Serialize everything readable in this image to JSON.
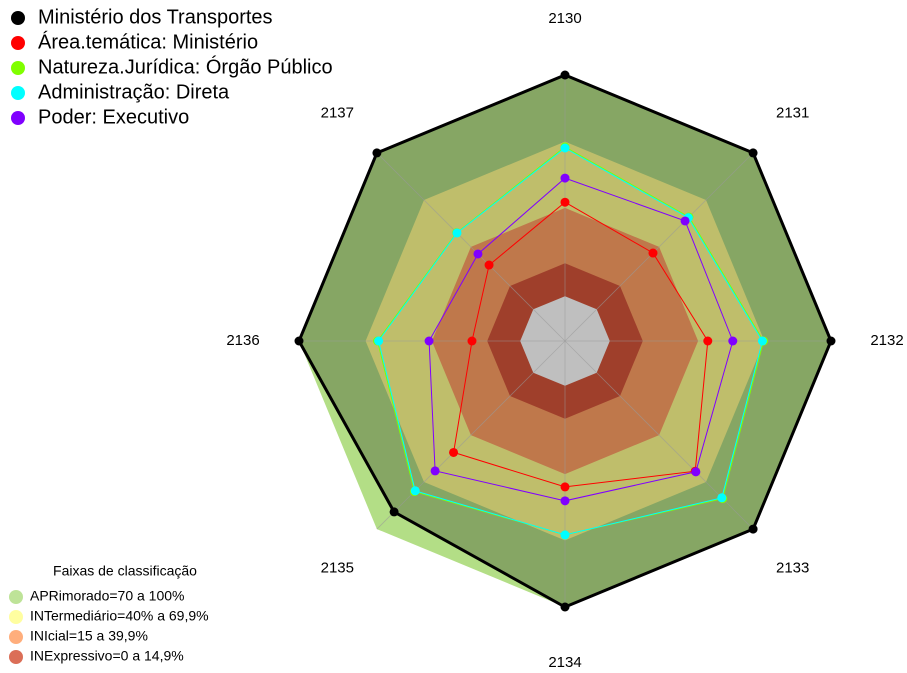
{
  "chart_data": {
    "type": "radar",
    "categories": [
      "2130",
      "2131",
      "2132",
      "2133",
      "2134",
      "2135",
      "2136",
      "2137"
    ],
    "rlim": [
      0,
      100
    ],
    "series": [
      {
        "name": "Ministério dos Transportes",
        "color": "#000000",
        "values": [
          100,
          100,
          100,
          100,
          100,
          89,
          100,
          100
        ]
      },
      {
        "name": "Área.temática: Ministério",
        "color": "#ff0000",
        "values": [
          42.5,
          36,
          44.3,
          63,
          45.7,
          51,
          21.8,
          28.3
        ]
      },
      {
        "name": "Natureza.Jurídica: Órgão Público",
        "color": "#80ff00",
        "values": [
          67.5,
          59,
          69.5,
          80.5,
          67.4,
          76,
          64.5,
          49
        ]
      },
      {
        "name": "Administração: Direta",
        "color": "#00ffff",
        "values": [
          67,
          58.6,
          69,
          80,
          67.4,
          75.5,
          64,
          48.8
        ]
      },
      {
        "name": "Poder: Executivo",
        "color": "#8000ff",
        "values": [
          53.4,
          56.5,
          55.6,
          63.4,
          52,
          62.8,
          41.2,
          35.4
        ]
      }
    ],
    "bands_title": "Faixas de classificação",
    "bands": [
      {
        "name": "APRimorado=70 a 100%",
        "color": "#b3de86",
        "value": 100
      },
      {
        "name": "INTermediário=40% a 69,9%",
        "color": "#fffe8f",
        "value": 69.9
      },
      {
        "name": "INIcial=15 a 39,9%",
        "color": "#ffa065",
        "value": 39.9
      },
      {
        "name": "INExpressivo=0 a 14,9%",
        "color": "#d5553a",
        "value": 14.9
      }
    ]
  }
}
